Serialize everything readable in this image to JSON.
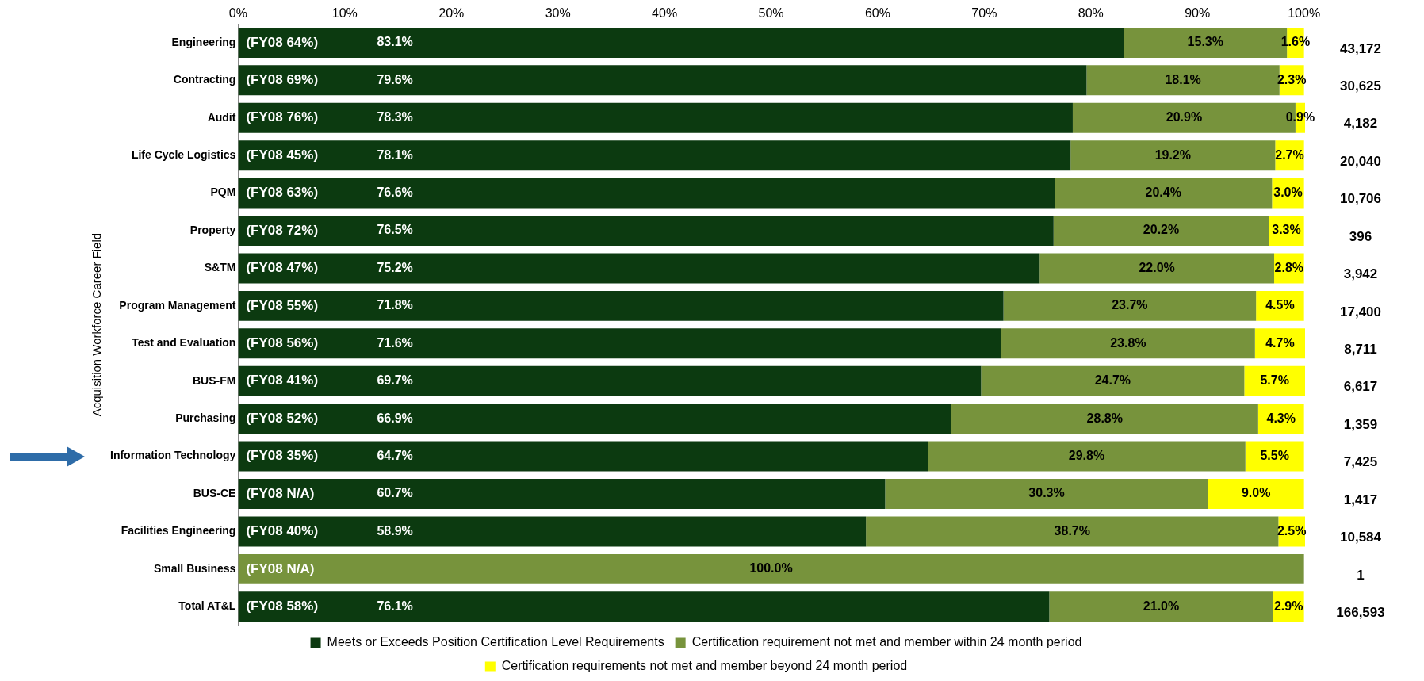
{
  "chart_data": {
    "type": "bar",
    "orientation": "horizontal",
    "stacked": true,
    "ylabel": "Acquisition Workforce Career Field",
    "categories": [
      "Engineering",
      "Contracting",
      "Audit",
      "Life Cycle Logistics",
      "PQM",
      "Property",
      "S&TM",
      "Program Management",
      "Test and Evaluation",
      "BUS-FM",
      "Purchasing",
      "Information Technology",
      "BUS-CE",
      "Facilities Engineering",
      "Small Business",
      "Total AT&L"
    ],
    "series": [
      {
        "name": "Meets or Exceeds Position Certification Level Requirements",
        "color": "#0c3a10",
        "values": [
          83.1,
          79.6,
          78.3,
          78.1,
          76.6,
          76.5,
          75.2,
          71.8,
          71.6,
          69.7,
          66.9,
          64.7,
          60.7,
          58.9,
          0,
          76.1
        ],
        "value_labels": [
          "83.1%",
          "79.6%",
          "78.3%",
          "78.1%",
          "76.6%",
          "76.5%",
          "75.2%",
          "71.8%",
          "71.6%",
          "69.7%",
          "66.9%",
          "64.7%",
          "60.7%",
          "58.9%",
          null,
          "76.1%"
        ]
      },
      {
        "name": "Certification requirement not met and member within 24 month period",
        "color": "#77933c",
        "values": [
          15.3,
          18.1,
          20.9,
          19.2,
          20.4,
          20.2,
          22.0,
          23.7,
          23.8,
          24.7,
          28.8,
          29.8,
          30.3,
          38.7,
          100.0,
          21.0
        ],
        "value_labels": [
          "15.3%",
          "18.1%",
          "20.9%",
          "19.2%",
          "20.4%",
          "20.2%",
          "22.0%",
          "23.7%",
          "23.8%",
          "24.7%",
          "28.8%",
          "29.8%",
          "30.3%",
          "38.7%",
          "100.0%",
          "21.0%"
        ]
      },
      {
        "name": "Certification requirements not met and member beyond 24 month period",
        "color": "#ffff00",
        "values": [
          1.6,
          2.3,
          0.9,
          2.7,
          3.0,
          3.3,
          2.8,
          4.5,
          4.7,
          5.7,
          4.3,
          5.5,
          9.0,
          2.5,
          0,
          2.9
        ],
        "value_labels": [
          "1.6%",
          "2.3%",
          "0.9%",
          "2.7%",
          "3.0%",
          "3.3%",
          "2.8%",
          "4.5%",
          "4.7%",
          "5.7%",
          "4.3%",
          "5.5%",
          "9.0%",
          "2.5%",
          null,
          "2.9%"
        ]
      }
    ],
    "xlim": [
      0,
      100.1
    ],
    "xticks": [
      {
        "value": 0,
        "label": "0%"
      },
      {
        "value": 10,
        "label": "10%"
      },
      {
        "value": 20,
        "label": "20%"
      },
      {
        "value": 30,
        "label": "30%"
      },
      {
        "value": 40,
        "label": "40%"
      },
      {
        "value": 50,
        "label": "50%"
      },
      {
        "value": 60,
        "label": "60%"
      },
      {
        "value": 70,
        "label": "70%"
      },
      {
        "value": 80,
        "label": "80%"
      },
      {
        "value": 90,
        "label": "90%"
      },
      {
        "value": 100,
        "label": "100%"
      }
    ],
    "grid": false,
    "legend": "bottom",
    "annotations": [
      "(FY08 64%)",
      "(FY08 69%)",
      "(FY08 76%)",
      "(FY08 45%)",
      "(FY08 63%)",
      "(FY08 72%)",
      "(FY08 47%)",
      "(FY08 55%)",
      "(FY08 56%)",
      "(FY08 41%)",
      "(FY08 52%)",
      "(FY08 35%)",
      "(FY08 N/A)",
      "(FY08 40%)",
      "(FY08 N/A)",
      "(FY08 58%)",
      "43,172",
      "30,625",
      "4,182",
      "20,040",
      "10,706",
      "396",
      "3,942",
      "17,400",
      "8,711",
      "6,617",
      "1,359",
      "7,425",
      "1,417",
      "10,584",
      "1",
      "166,593"
    ]
  }
}
